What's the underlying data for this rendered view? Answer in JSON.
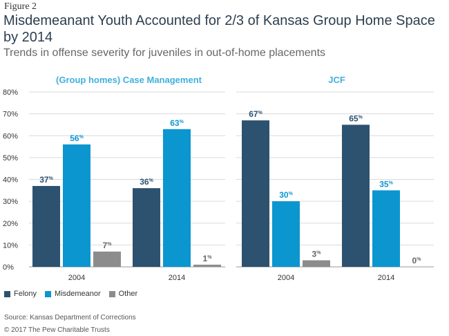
{
  "header": {
    "figure_label": "Figure 2",
    "title": "Misdemeanant Youth Accounted for 2/3 of Kansas Group Home Space by 2014",
    "subtitle": "Trends in offense severity for juveniles in out-of-home placements"
  },
  "footer": {
    "source": "Source: Kansas Department of Corrections",
    "copyright": "© 2017 The Pew Charitable Trusts"
  },
  "colors": {
    "felony": "#2d5270",
    "misdemeanor": "#0b96cf",
    "other": "#8c8c8c",
    "panel_title": "#3fb0dc"
  },
  "legend": [
    {
      "name": "Felony",
      "color": "#2d5270"
    },
    {
      "name": "Misdemeanor",
      "color": "#0b96cf"
    },
    {
      "name": "Other",
      "color": "#8c8c8c"
    }
  ],
  "chart_data": [
    {
      "type": "bar",
      "title": "(Group homes) Case Management",
      "categories": [
        "2004",
        "2014"
      ],
      "series": [
        {
          "name": "Felony",
          "values": [
            37,
            36
          ]
        },
        {
          "name": "Misdemeanor",
          "values": [
            56,
            63
          ]
        },
        {
          "name": "Other",
          "values": [
            7,
            1
          ]
        }
      ],
      "ylim": [
        0,
        80
      ],
      "yticks": [
        "0%",
        "10%",
        "20%",
        "30%",
        "40%",
        "50%",
        "60%",
        "70%",
        "80%"
      ],
      "grid": true,
      "legend": "bottom-left"
    },
    {
      "type": "bar",
      "title": "JCF",
      "categories": [
        "2004",
        "2014"
      ],
      "series": [
        {
          "name": "Felony",
          "values": [
            67,
            65
          ]
        },
        {
          "name": "Misdemeanor",
          "values": [
            30,
            35
          ]
        },
        {
          "name": "Other",
          "values": [
            3,
            0
          ]
        }
      ],
      "ylim": [
        0,
        80
      ],
      "grid": true,
      "legend": "bottom-left"
    }
  ]
}
